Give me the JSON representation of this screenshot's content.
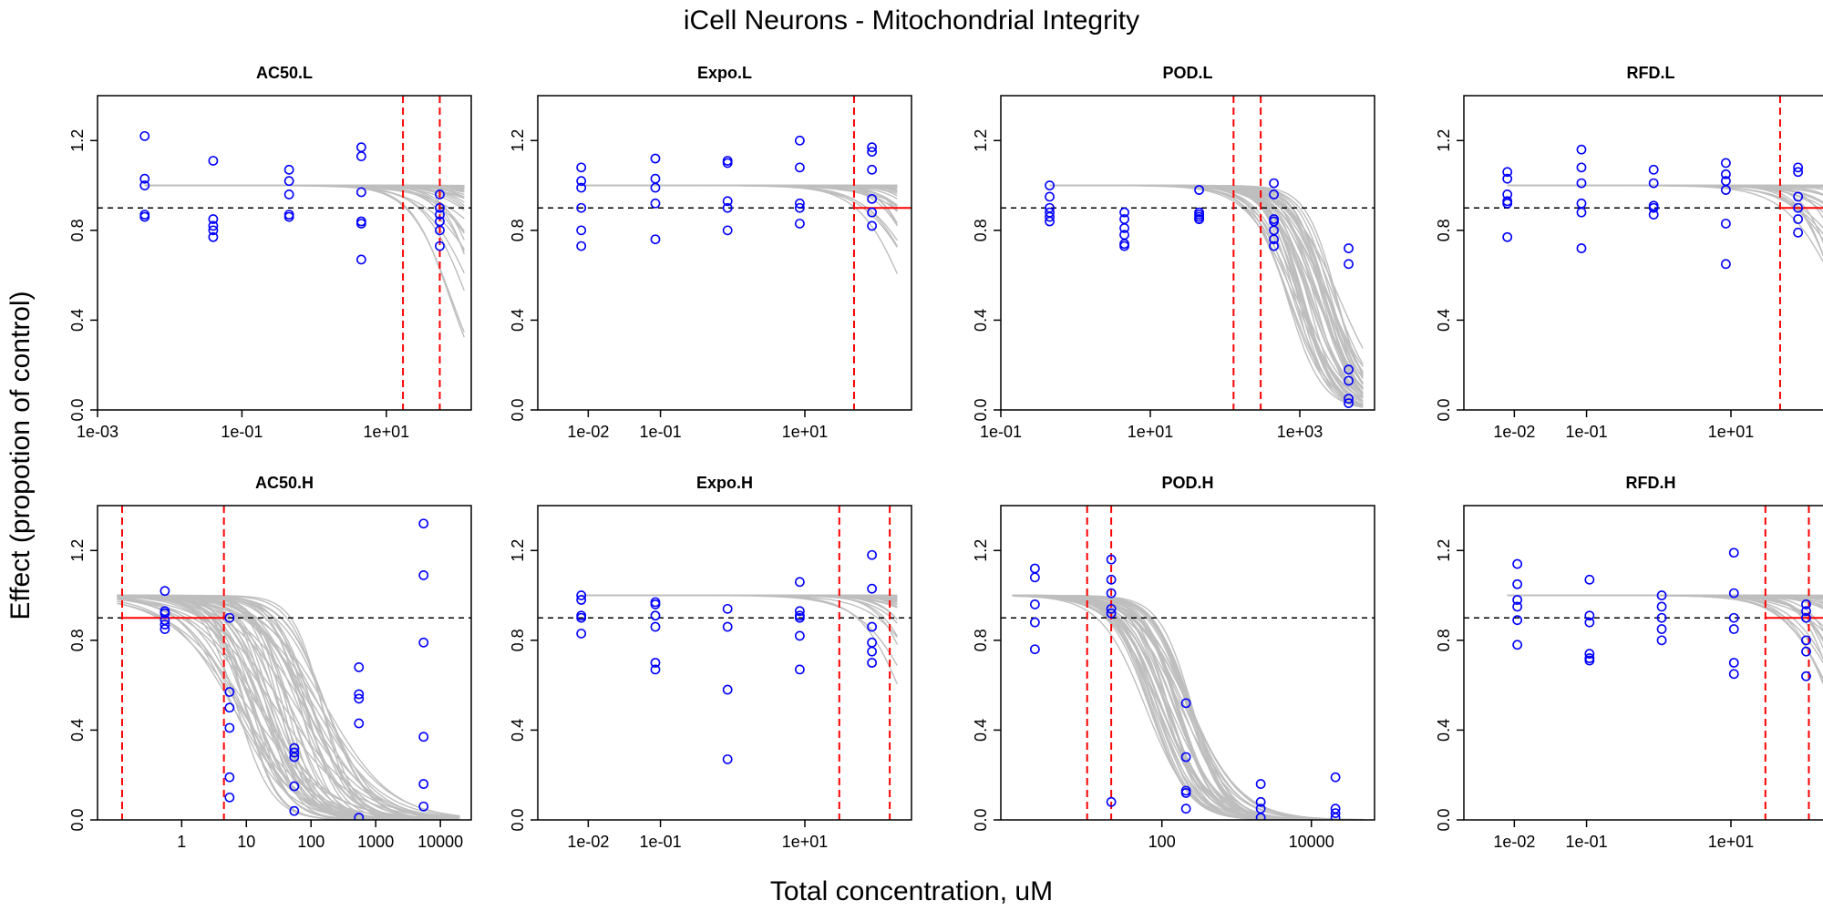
{
  "figure": {
    "title": "iCell Neurons -  Mitochondrial Integrity",
    "xlabel": "Total concentration, uM",
    "ylabel": "Effect (propotion of control)"
  },
  "colors": {
    "curves": "#bebebe",
    "points": "#0000ff",
    "threshold_line": "#000000",
    "marker_lines": "#ff0000"
  },
  "chart_data": [
    {
      "type": "scatter",
      "title": "AC50.L",
      "x_scale": "log",
      "xlim": [
        0.001,
        150
      ],
      "ylim": [
        0,
        1.4
      ],
      "x_ticks": [
        {
          "value": 0.001,
          "label": "1e-03"
        },
        {
          "value": 0.1,
          "label": "1e-01"
        },
        {
          "value": 10,
          "label": "1e+01"
        }
      ],
      "y_ticks": [
        {
          "value": 0,
          "label": "0.0"
        },
        {
          "value": 0.4,
          "label": "0.4"
        },
        {
          "value": 0.8,
          "label": "0.8"
        },
        {
          "value": 1.2,
          "label": "1.2"
        }
      ],
      "threshold": 0.9,
      "vlines": [
        17,
        55
      ],
      "hline_segment": null,
      "curves": {
        "top": 1.0,
        "ec50_min": 70,
        "ec50_max": 20000,
        "hill_min": 0.9,
        "hill_max": 2.0,
        "x_from": 0.0045,
        "x_to": 120,
        "count": 45
      },
      "points": [
        {
          "x": 0.0045,
          "y": [
            1.22,
            1.03,
            1.0,
            0.87,
            0.86
          ]
        },
        {
          "x": 0.04,
          "y": [
            1.11,
            0.85,
            0.82,
            0.8,
            0.77
          ]
        },
        {
          "x": 0.45,
          "y": [
            1.07,
            1.02,
            0.96,
            0.87,
            0.86
          ]
        },
        {
          "x": 4.5,
          "y": [
            1.17,
            1.13,
            0.97,
            0.84,
            0.83,
            0.67
          ]
        },
        {
          "x": 55,
          "y": [
            0.96,
            0.9,
            0.87,
            0.84,
            0.8,
            0.73
          ]
        }
      ]
    },
    {
      "type": "scatter",
      "title": "Expo.L",
      "x_scale": "log",
      "xlim": [
        0.002,
        300
      ],
      "ylim": [
        0,
        1.4
      ],
      "x_ticks": [
        {
          "value": 0.01,
          "label": "1e-02"
        },
        {
          "value": 0.1,
          "label": "1e-01"
        },
        {
          "value": 10,
          "label": "1e+01"
        }
      ],
      "y_ticks": [
        {
          "value": 0,
          "label": "0.0"
        },
        {
          "value": 0.4,
          "label": "0.4"
        },
        {
          "value": 0.8,
          "label": "0.8"
        },
        {
          "value": 1.2,
          "label": "1.2"
        }
      ],
      "threshold": 0.9,
      "vlines": [
        48
      ],
      "hline_segment": {
        "x_from": 48,
        "x_to": 300,
        "y": 0.9
      },
      "curves": {
        "top": 1.0,
        "ec50_min": 250,
        "ec50_max": 100000,
        "hill_min": 1.0,
        "hill_max": 2.0,
        "x_from": 0.008,
        "x_to": 190,
        "count": 45
      },
      "points": [
        {
          "x": 0.008,
          "y": [
            1.08,
            1.02,
            0.99,
            0.9,
            0.8,
            0.73
          ]
        },
        {
          "x": 0.085,
          "y": [
            1.12,
            1.03,
            0.99,
            0.92,
            0.76
          ]
        },
        {
          "x": 0.85,
          "y": [
            1.11,
            1.1,
            0.93,
            0.9,
            0.8
          ]
        },
        {
          "x": 8.5,
          "y": [
            1.2,
            1.08,
            0.92,
            0.9,
            0.83
          ]
        },
        {
          "x": 85,
          "y": [
            1.17,
            1.15,
            1.07,
            0.94,
            0.88,
            0.82
          ]
        }
      ]
    },
    {
      "type": "scatter",
      "title": "POD.L",
      "x_scale": "log",
      "xlim": [
        0.1,
        10000
      ],
      "ylim": [
        0,
        1.4
      ],
      "x_ticks": [
        {
          "value": 0.1,
          "label": "1e-01"
        },
        {
          "value": 10,
          "label": "1e+01"
        },
        {
          "value": 1000,
          "label": "1e+03"
        }
      ],
      "y_ticks": [
        {
          "value": 0,
          "label": "0.0"
        },
        {
          "value": 0.4,
          "label": "0.4"
        },
        {
          "value": 0.8,
          "label": "0.8"
        },
        {
          "value": 1.2,
          "label": "1.2"
        }
      ],
      "threshold": 0.9,
      "vlines": [
        130,
        300
      ],
      "hline_segment": null,
      "curves": {
        "top": 1.0,
        "ec50_min": 650,
        "ec50_max": 3500,
        "hill_min": 1.3,
        "hill_max": 2.2,
        "x_from": 0.45,
        "x_to": 7000,
        "count": 45
      },
      "points": [
        {
          "x": 0.45,
          "y": [
            1.0,
            0.95,
            0.9,
            0.88,
            0.86,
            0.84
          ]
        },
        {
          "x": 4.5,
          "y": [
            0.88,
            0.85,
            0.81,
            0.78,
            0.74,
            0.73
          ]
        },
        {
          "x": 45,
          "y": [
            0.98,
            0.88,
            0.87,
            0.86,
            0.85,
            0.85
          ]
        },
        {
          "x": 450,
          "y": [
            1.01,
            0.96,
            0.85,
            0.84,
            0.8,
            0.76,
            0.73
          ]
        },
        {
          "x": 4500,
          "y": [
            0.72,
            0.65,
            0.18,
            0.13,
            0.05,
            0.03
          ]
        }
      ]
    },
    {
      "type": "scatter",
      "title": "RFD.L",
      "x_scale": "log",
      "xlim": [
        0.002,
        300
      ],
      "ylim": [
        0,
        1.4
      ],
      "x_ticks": [
        {
          "value": 0.01,
          "label": "1e-02"
        },
        {
          "value": 0.1,
          "label": "1e-01"
        },
        {
          "value": 10,
          "label": "1e+01"
        }
      ],
      "y_ticks": [
        {
          "value": 0,
          "label": "0.0"
        },
        {
          "value": 0.4,
          "label": "0.4"
        },
        {
          "value": 0.8,
          "label": "0.8"
        },
        {
          "value": 1.2,
          "label": "1.2"
        }
      ],
      "threshold": 0.9,
      "vlines": [
        48
      ],
      "hline_segment": {
        "x_from": 48,
        "x_to": 300,
        "y": 0.9
      },
      "curves": {
        "top": 1.0,
        "ec50_min": 250,
        "ec50_max": 100000,
        "hill_min": 1.0,
        "hill_max": 2.0,
        "x_from": 0.008,
        "x_to": 190,
        "count": 45
      },
      "points": [
        {
          "x": 0.008,
          "y": [
            1.06,
            1.03,
            0.96,
            0.93,
            0.92,
            0.77
          ]
        },
        {
          "x": 0.085,
          "y": [
            1.16,
            1.08,
            1.01,
            0.92,
            0.88,
            0.72
          ]
        },
        {
          "x": 0.85,
          "y": [
            1.07,
            1.01,
            0.91,
            0.9,
            0.87
          ]
        },
        {
          "x": 8.5,
          "y": [
            1.1,
            1.05,
            1.02,
            0.98,
            0.83,
            0.65
          ]
        },
        {
          "x": 85,
          "y": [
            1.08,
            1.06,
            0.95,
            0.9,
            0.85,
            0.79
          ]
        }
      ]
    },
    {
      "type": "scatter",
      "title": "AC50.H",
      "x_scale": "log",
      "xlim": [
        0.05,
        30000
      ],
      "ylim": [
        0,
        1.4
      ],
      "x_ticks": [
        {
          "value": 1,
          "label": "1"
        },
        {
          "value": 10,
          "label": "10"
        },
        {
          "value": 100,
          "label": "100"
        },
        {
          "value": 1000,
          "label": "1000"
        },
        {
          "value": 10000,
          "label": "10000"
        }
      ],
      "y_ticks": [
        {
          "value": 0,
          "label": "0.0"
        },
        {
          "value": 0.4,
          "label": "0.4"
        },
        {
          "value": 0.8,
          "label": "0.8"
        },
        {
          "value": 1.2,
          "label": "1.2"
        }
      ],
      "threshold": 0.9,
      "vlines": [
        0.12,
        4.5
      ],
      "hline_segment": {
        "x_from": 0.12,
        "x_to": 4.5,
        "y": 0.9
      },
      "curves": {
        "top": 1.0,
        "ec50_min": 6,
        "ec50_max": 200,
        "hill_min": 0.7,
        "hill_max": 2.0,
        "x_from": 0.1,
        "x_to": 20000,
        "count": 60
      },
      "points": [
        {
          "x": 0.55,
          "y": [
            1.02,
            0.93,
            0.92,
            0.89,
            0.87,
            0.85
          ]
        },
        {
          "x": 5.5,
          "y": [
            0.9,
            0.57,
            0.5,
            0.41,
            0.19,
            0.1
          ]
        },
        {
          "x": 55,
          "y": [
            0.32,
            0.3,
            0.28,
            0.15,
            0.04
          ]
        },
        {
          "x": 550,
          "y": [
            0.68,
            0.56,
            0.54,
            0.43,
            0.01
          ]
        },
        {
          "x": 5500,
          "y": [
            1.32,
            1.09,
            0.79,
            0.37,
            0.16,
            0.06
          ]
        }
      ]
    },
    {
      "type": "scatter",
      "title": "Expo.H",
      "x_scale": "log",
      "xlim": [
        0.002,
        300
      ],
      "ylim": [
        0,
        1.4
      ],
      "x_ticks": [
        {
          "value": 0.01,
          "label": "1e-02"
        },
        {
          "value": 0.1,
          "label": "1e-01"
        },
        {
          "value": 10,
          "label": "1e+01"
        }
      ],
      "y_ticks": [
        {
          "value": 0,
          "label": "0.0"
        },
        {
          "value": 0.4,
          "label": "0.4"
        },
        {
          "value": 0.8,
          "label": "0.8"
        },
        {
          "value": 1.2,
          "label": "1.2"
        }
      ],
      "threshold": 0.9,
      "vlines": [
        30,
        150
      ],
      "hline_segment": null,
      "curves": {
        "top": 1.0,
        "ec50_min": 250,
        "ec50_max": 100000,
        "hill_min": 1.0,
        "hill_max": 2.0,
        "x_from": 0.008,
        "x_to": 190,
        "count": 45
      },
      "points": [
        {
          "x": 0.008,
          "y": [
            1.0,
            0.98,
            0.91,
            0.9,
            0.83
          ]
        },
        {
          "x": 0.085,
          "y": [
            0.97,
            0.96,
            0.91,
            0.86,
            0.7,
            0.67
          ]
        },
        {
          "x": 0.85,
          "y": [
            0.94,
            0.86,
            0.58,
            0.27
          ]
        },
        {
          "x": 8.5,
          "y": [
            1.06,
            0.93,
            0.91,
            0.9,
            0.82,
            0.67
          ]
        },
        {
          "x": 85,
          "y": [
            1.18,
            1.03,
            0.86,
            0.79,
            0.75,
            0.7
          ]
        }
      ]
    },
    {
      "type": "scatter",
      "title": "POD.H",
      "x_scale": "log",
      "xlim": [
        0.7,
        70000
      ],
      "ylim": [
        0,
        1.4
      ],
      "x_ticks": [
        {
          "value": 100,
          "label": "100"
        },
        {
          "value": 10000,
          "label": "10000"
        }
      ],
      "y_ticks": [
        {
          "value": 0,
          "label": "0.0"
        },
        {
          "value": 0.4,
          "label": "0.4"
        },
        {
          "value": 0.8,
          "label": "0.8"
        },
        {
          "value": 1.2,
          "label": "1.2"
        }
      ],
      "threshold": 0.9,
      "vlines": [
        10,
        21
      ],
      "hline_segment": null,
      "curves": {
        "top": 1.0,
        "ec50_min": 60,
        "ec50_max": 260,
        "hill_min": 1.2,
        "hill_max": 2.0,
        "x_from": 1,
        "x_to": 50000,
        "count": 45
      },
      "points": [
        {
          "x": 2,
          "y": [
            1.12,
            1.08,
            0.96,
            0.88,
            0.76
          ]
        },
        {
          "x": 21,
          "y": [
            1.16,
            1.07,
            1.01,
            0.94,
            0.92,
            0.08
          ]
        },
        {
          "x": 210,
          "y": [
            0.52,
            0.28,
            0.13,
            0.12,
            0.05
          ]
        },
        {
          "x": 2100,
          "y": [
            0.16,
            0.08,
            0.05,
            0.01
          ]
        },
        {
          "x": 21000,
          "y": [
            0.19,
            0.05,
            0.03,
            0.01
          ]
        }
      ]
    },
    {
      "type": "scatter",
      "title": "RFD.H",
      "x_scale": "log",
      "xlim": [
        0.002,
        300
      ],
      "ylim": [
        0,
        1.4
      ],
      "x_ticks": [
        {
          "value": 0.01,
          "label": "1e-02"
        },
        {
          "value": 0.1,
          "label": "1e-01"
        },
        {
          "value": 10,
          "label": "1e+01"
        }
      ],
      "y_ticks": [
        {
          "value": 0,
          "label": "0.0"
        },
        {
          "value": 0.4,
          "label": "0.4"
        },
        {
          "value": 0.8,
          "label": "0.8"
        },
        {
          "value": 1.2,
          "label": "1.2"
        }
      ],
      "threshold": 0.9,
      "vlines": [
        30,
        120
      ],
      "hline_segment": {
        "x_from": 30,
        "x_to": 300,
        "y": 0.9
      },
      "curves": {
        "top": 1.0,
        "ec50_min": 250,
        "ec50_max": 100000,
        "hill_min": 1.0,
        "hill_max": 2.0,
        "x_from": 0.008,
        "x_to": 190,
        "count": 45
      },
      "points": [
        {
          "x": 0.011,
          "y": [
            1.14,
            1.05,
            0.98,
            0.95,
            0.89,
            0.78
          ]
        },
        {
          "x": 0.11,
          "y": [
            1.07,
            0.91,
            0.88,
            0.74,
            0.72,
            0.71
          ]
        },
        {
          "x": 1.1,
          "y": [
            1.0,
            0.95,
            0.9,
            0.85,
            0.8
          ]
        },
        {
          "x": 11,
          "y": [
            1.19,
            1.01,
            0.9,
            0.85,
            0.7,
            0.65
          ]
        },
        {
          "x": 110,
          "y": [
            0.96,
            0.93,
            0.9,
            0.8,
            0.75,
            0.64
          ]
        }
      ]
    }
  ]
}
